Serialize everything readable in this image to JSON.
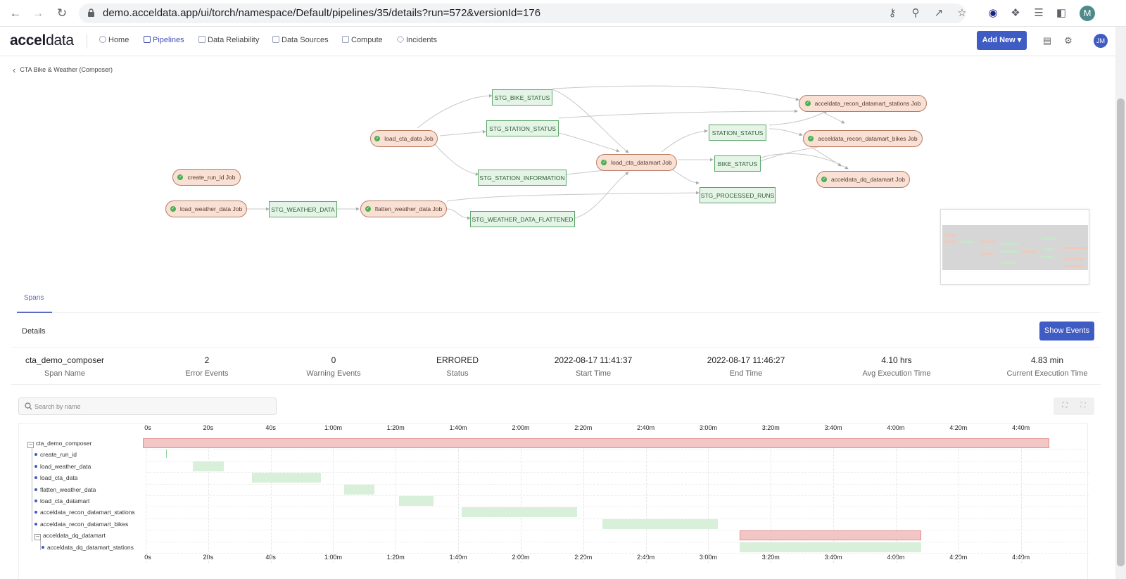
{
  "browser": {
    "url": "demo.acceldata.app/ui/torch/namespace/Default/pipelines/35/details?run=572&versionId=176",
    "profile_initial": "M"
  },
  "app": {
    "logo": {
      "bold": "accel",
      "regular": "data"
    },
    "nav": [
      "Home",
      "Pipelines",
      "Data Reliability",
      "Data Sources",
      "Compute",
      "Incidents"
    ],
    "active_nav": "Pipelines",
    "add_new_label": "Add New",
    "user_initials": "JM"
  },
  "breadcrumb": {
    "title": "CTA Bike & Weather (Composer)"
  },
  "graph": {
    "nodes": [
      {
        "label": "create_run_id Job",
        "kind": "job"
      },
      {
        "label": "load_weather_data Job",
        "kind": "job"
      },
      {
        "label": "STG_WEATHER_DATA",
        "kind": "table"
      },
      {
        "label": "flatten_weather_data Job",
        "kind": "job"
      },
      {
        "label": "STG_WEATHER_DATA_FLATTENED",
        "kind": "table"
      },
      {
        "label": "load_cta_data Job",
        "kind": "job"
      },
      {
        "label": "STG_BIKE_STATUS",
        "kind": "table"
      },
      {
        "label": "STG_STATION_STATUS",
        "kind": "table"
      },
      {
        "label": "STG_STATION_INFORMATION",
        "kind": "table"
      },
      {
        "label": "load_cta_datamart Job",
        "kind": "job"
      },
      {
        "label": "STATION_STATUS",
        "kind": "table"
      },
      {
        "label": "BIKE_STATUS",
        "kind": "table"
      },
      {
        "label": "STG_PROCESSED_RUNS",
        "kind": "table"
      },
      {
        "label": "acceldata_recon_datamart_stations Job",
        "kind": "job"
      },
      {
        "label": "acceldata_recon_datamart_bikes Job",
        "kind": "job"
      },
      {
        "label": "acceldata_dq_datamart Job",
        "kind": "job"
      }
    ]
  },
  "tabs": {
    "spans": "Spans"
  },
  "details": {
    "title": "Details",
    "show_events_label": "Show Events",
    "stats": [
      {
        "value": "cta_demo_composer",
        "label": "Span Name"
      },
      {
        "value": "2",
        "label": "Error Events"
      },
      {
        "value": "0",
        "label": "Warning Events"
      },
      {
        "value": "ERRORED",
        "label": "Status"
      },
      {
        "value": "2022-08-17 11:41:37",
        "label": "Start Time"
      },
      {
        "value": "2022-08-17 11:46:27",
        "label": "End Time"
      },
      {
        "value": "4.10 hrs",
        "label": "Avg Execution Time"
      },
      {
        "value": "4.83 min",
        "label": "Current Execution Time"
      }
    ]
  },
  "search": {
    "placeholder": "Search by name"
  },
  "timeline": {
    "ticks": [
      "0s",
      "20s",
      "40s",
      "1:00m",
      "1:20m",
      "1:40m",
      "2:00m",
      "2:20m",
      "2:40m",
      "3:00m",
      "3:20m",
      "3:40m",
      "4:00m",
      "4:20m",
      "4:40m"
    ],
    "tick_seconds": 20,
    "axis_max_seconds": 290,
    "spans": [
      {
        "name": "cta_demo_composer",
        "start": 0,
        "end": 290,
        "status": "error",
        "expandable": true,
        "level": 0
      },
      {
        "name": "create_run_id",
        "start": 7.5,
        "end": 7.7,
        "status": "success",
        "level": 1
      },
      {
        "name": "load_weather_data",
        "start": 16,
        "end": 26,
        "status": "success",
        "level": 1
      },
      {
        "name": "load_cta_data",
        "start": 35,
        "end": 57,
        "status": "success",
        "level": 1
      },
      {
        "name": "flatten_weather_data",
        "start": 64.5,
        "end": 74,
        "status": "success",
        "level": 1
      },
      {
        "name": "load_cta_datamart",
        "start": 82,
        "end": 93,
        "status": "success",
        "level": 1
      },
      {
        "name": "acceldata_recon_datamart_stations",
        "start": 102,
        "end": 139,
        "status": "success",
        "level": 1
      },
      {
        "name": "acceldata_recon_datamart_bikes",
        "start": 147,
        "end": 184,
        "status": "success",
        "level": 1
      },
      {
        "name": "acceldata_dq_datamart",
        "start": 191,
        "end": 249,
        "status": "error",
        "expandable": true,
        "level": 1
      },
      {
        "name": "acceldata_dq_datamart_stations",
        "start": 191,
        "end": 249,
        "status": "success",
        "level": 2
      }
    ]
  },
  "colors": {
    "primary": "#3f5bc4",
    "error_bar": "#f3c6c6",
    "success_bar": "#d8f0da",
    "job_node": "#f8e0d4",
    "table_node": "#e4f4e6"
  }
}
